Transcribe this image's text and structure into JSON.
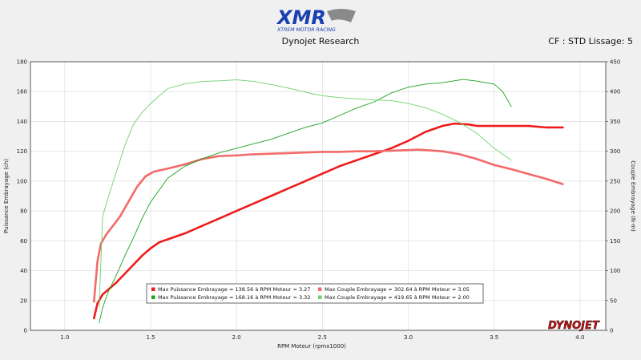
{
  "header": {
    "logo_text": "XMR",
    "logo_subtext": "XTREM MOTOR RACING",
    "title": "Dynojet Research",
    "cf_text": "CF : STD Lissage: 5"
  },
  "footer": {
    "brand": "DYNOJET"
  },
  "colors": {
    "power_clutch_ref": "#ee1c1c",
    "torque_clutch_ref": "#f26a6a",
    "power_clutch_new": "#1aa31a",
    "torque_clutch_new": "#6cd26c",
    "plot_bg": "#ffffff",
    "grid": "#d9d9d9"
  },
  "chart_data": {
    "type": "line",
    "title": "Dynojet Research",
    "xlabel": "RPM Moteur (rpmx1000)",
    "ylabel_left": "Puissance Embrayage (ch)",
    "ylabel_right": "Couple Embrayage (N·m)",
    "xlim": [
      0.8,
      4.15
    ],
    "ylim_left": [
      0,
      180
    ],
    "ylim_right": [
      0,
      450
    ],
    "xticks": [
      "1.0",
      "1.5",
      "2.0",
      "2.5",
      "3.0",
      "3.5",
      "4.0"
    ],
    "yticks_left": [
      "0",
      "20",
      "40",
      "60",
      "80",
      "100",
      "120",
      "140",
      "160",
      "180"
    ],
    "yticks_right": [
      "0",
      "50",
      "100",
      "150",
      "200",
      "250",
      "300",
      "350",
      "400",
      "450"
    ],
    "grid": true,
    "legend_position": "bottom-center",
    "series": [
      {
        "name": "Max Puissance Embrayage = 138.56 à RPM Moteur = 3.27",
        "axis": "left",
        "x": [
          1.17,
          1.19,
          1.22,
          1.26,
          1.3,
          1.35,
          1.4,
          1.45,
          1.5,
          1.55,
          1.6,
          1.7,
          1.8,
          1.9,
          2.0,
          2.1,
          2.2,
          2.3,
          2.4,
          2.5,
          2.6,
          2.7,
          2.8,
          2.9,
          3.0,
          3.1,
          3.2,
          3.27,
          3.35,
          3.4,
          3.5,
          3.6,
          3.7,
          3.8,
          3.9
        ],
        "y": [
          8,
          18,
          24,
          28,
          32,
          38,
          44,
          50,
          55,
          59,
          61,
          65,
          70,
          75,
          80,
          85,
          90,
          95,
          100,
          105,
          110,
          114,
          118,
          122,
          127,
          133,
          137,
          138.56,
          138,
          137,
          137,
          137,
          137,
          136,
          136
        ]
      },
      {
        "name": "Max Couple Embrayage = 302.64 à RPM Moteur = 3.05",
        "axis": "right",
        "x": [
          1.17,
          1.19,
          1.21,
          1.24,
          1.28,
          1.32,
          1.37,
          1.42,
          1.47,
          1.52,
          1.6,
          1.7,
          1.8,
          1.9,
          2.0,
          2.1,
          2.2,
          2.3,
          2.4,
          2.5,
          2.6,
          2.7,
          2.8,
          2.9,
          3.0,
          3.05,
          3.1,
          3.2,
          3.3,
          3.4,
          3.5,
          3.6,
          3.7,
          3.8,
          3.9
        ],
        "y": [
          48,
          115,
          145,
          160,
          175,
          190,
          215,
          240,
          258,
          266,
          271,
          278,
          287,
          292,
          293,
          295,
          296,
          297,
          298,
          299,
          299,
          300,
          300,
          301,
          302,
          302.64,
          302,
          300,
          295,
          287,
          277,
          270,
          262,
          254,
          245
        ]
      },
      {
        "name": "Max Puissance Embrayage = 168.16 à RPM Moteur = 3.32",
        "axis": "left",
        "x": [
          1.2,
          1.22,
          1.25,
          1.3,
          1.35,
          1.4,
          1.45,
          1.5,
          1.6,
          1.7,
          1.8,
          1.9,
          2.0,
          2.1,
          2.2,
          2.3,
          2.4,
          2.5,
          2.6,
          2.7,
          2.8,
          2.9,
          3.0,
          3.1,
          3.2,
          3.32,
          3.4,
          3.5,
          3.55,
          3.6
        ],
        "y": [
          5,
          15,
          25,
          37,
          50,
          62,
          75,
          86,
          102,
          110,
          115,
          119,
          122,
          125,
          128,
          132,
          136,
          139,
          144,
          149,
          153,
          159,
          163,
          165,
          166,
          168.16,
          167,
          165,
          160,
          150
        ]
      },
      {
        "name": "Max Couple Embrayage = 419.65 à RPM Moteur = 2.00",
        "axis": "right",
        "x": [
          1.2,
          1.22,
          1.25,
          1.3,
          1.35,
          1.4,
          1.45,
          1.5,
          1.55,
          1.6,
          1.7,
          1.8,
          1.9,
          2.0,
          2.1,
          2.2,
          2.3,
          2.4,
          2.5,
          2.6,
          2.7,
          2.8,
          2.9,
          3.0,
          3.1,
          3.2,
          3.3,
          3.4,
          3.5,
          3.6
        ],
        "y": [
          40,
          190,
          220,
          265,
          310,
          345,
          365,
          380,
          393,
          405,
          413,
          417,
          418,
          419.65,
          417,
          412,
          406,
          399,
          393,
          390,
          388,
          386,
          385,
          380,
          373,
          362,
          348,
          330,
          305,
          285
        ]
      }
    ]
  }
}
